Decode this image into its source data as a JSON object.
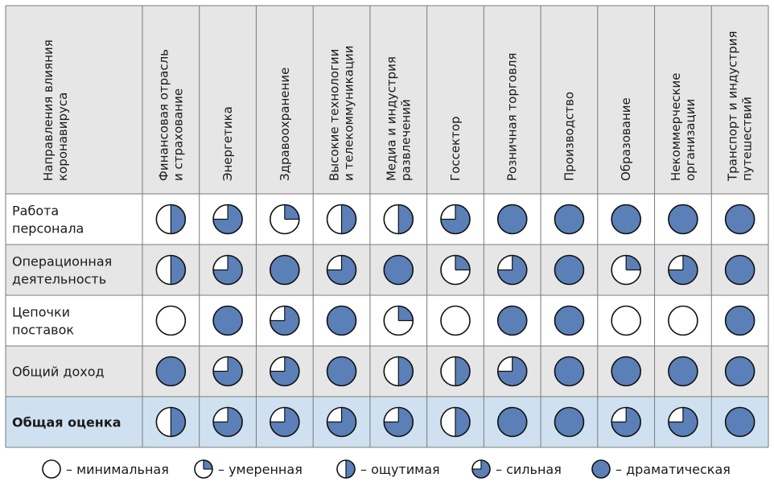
{
  "chart_data": {
    "type": "table",
    "corner_header": [
      "Направления влияния",
      "коронавируса"
    ],
    "columns": [
      [
        "Финансовая отрасль",
        "и страхование"
      ],
      [
        "Энергетика"
      ],
      [
        "Здравоохранение"
      ],
      [
        "Высокие технологии",
        "и телекоммуникации"
      ],
      [
        "Медиа и индустрия",
        "развлечений"
      ],
      [
        "Госсектор"
      ],
      [
        "Розничная торговля"
      ],
      [
        "Производство"
      ],
      [
        "Образование"
      ],
      [
        "Некоммерческие",
        "организации"
      ],
      [
        "Транспорт и индустрия",
        "путешествий"
      ]
    ],
    "rows": [
      {
        "label": [
          "Работа",
          "персонала"
        ],
        "bold": false,
        "values": [
          2,
          3,
          1,
          2,
          2,
          3,
          4,
          4,
          4,
          4,
          4
        ]
      },
      {
        "label": [
          "Операционная",
          "деятельность"
        ],
        "bold": false,
        "values": [
          2,
          3,
          4,
          3,
          4,
          1,
          3,
          4,
          1,
          3,
          4
        ]
      },
      {
        "label": [
          "Цепочки",
          "поставок"
        ],
        "bold": false,
        "values": [
          0,
          4,
          3,
          4,
          1,
          0,
          4,
          4,
          0,
          0,
          4
        ]
      },
      {
        "label": [
          "Общий доход"
        ],
        "bold": false,
        "values": [
          4,
          3,
          3,
          4,
          2,
          2,
          3,
          4,
          4,
          4,
          4
        ]
      },
      {
        "label": [
          "Общая оценка"
        ],
        "bold": true,
        "values": [
          2,
          3,
          3,
          3,
          3,
          2,
          4,
          4,
          3,
          3,
          4
        ]
      }
    ],
    "legend": [
      {
        "level": 0,
        "label": "– минимальная"
      },
      {
        "level": 1,
        "label": "– умеренная"
      },
      {
        "level": 2,
        "label": "– ощутимая"
      },
      {
        "level": 3,
        "label": "– сильная"
      },
      {
        "level": 4,
        "label": "– драматическая"
      }
    ],
    "colors": {
      "fill": "#5b80b8",
      "outline": "#111111",
      "header_bg": "#e6e6e6",
      "row_white": "#ffffff",
      "row_gray": "#e6e6e6",
      "row_summary": "#cfe1f1",
      "grid": "#7a7a7a"
    }
  }
}
